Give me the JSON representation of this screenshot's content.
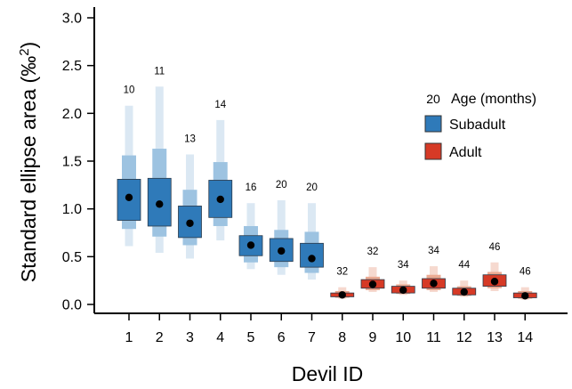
{
  "chart_data": {
    "type": "boxplot-intervals",
    "xlabel": "Devil ID",
    "ylabel_main": "Standard ellipse area (",
    "ylabel_unit": "‰",
    "ylabel_sup": "2",
    "ylabel_close": ")",
    "ylim": [
      0,
      3.0
    ],
    "yticks": [
      "0.0",
      "0.5",
      "1.0",
      "1.5",
      "2.0",
      "2.5",
      "3.0"
    ],
    "categories": [
      "1",
      "2",
      "3",
      "4",
      "5",
      "6",
      "7",
      "8",
      "9",
      "10",
      "11",
      "12",
      "13",
      "14"
    ],
    "legend": {
      "age_num": "20",
      "age_text": "Age (months)",
      "subadult": "Subadult",
      "adult": "Adult"
    },
    "colors": {
      "subadult": [
        "#dbe8f3",
        "#9dc3e1",
        "#2f7ab9"
      ],
      "adult": [
        "#f6d9cf",
        "#ecaa92",
        "#d63a26"
      ],
      "point": "#000000"
    },
    "series": [
      {
        "id": "1",
        "group": "subadult",
        "age": "10",
        "point": 1.12,
        "i95": [
          0.61,
          2.08
        ],
        "i75": [
          0.79,
          1.56
        ],
        "i50": [
          0.88,
          1.31
        ]
      },
      {
        "id": "2",
        "group": "subadult",
        "age": "11",
        "point": 1.05,
        "i95": [
          0.54,
          2.28
        ],
        "i75": [
          0.71,
          1.63
        ],
        "i50": [
          0.82,
          1.32
        ]
      },
      {
        "id": "3",
        "group": "subadult",
        "age": "13",
        "point": 0.85,
        "i95": [
          0.48,
          1.57
        ],
        "i75": [
          0.62,
          1.2
        ],
        "i50": [
          0.7,
          1.03
        ]
      },
      {
        "id": "4",
        "group": "subadult",
        "age": "14",
        "point": 1.1,
        "i95": [
          0.67,
          1.93
        ],
        "i75": [
          0.82,
          1.49
        ],
        "i50": [
          0.91,
          1.3
        ]
      },
      {
        "id": "5",
        "group": "subadult",
        "age": "16",
        "point": 0.62,
        "i95": [
          0.37,
          1.06
        ],
        "i75": [
          0.44,
          0.82
        ],
        "i50": [
          0.51,
          0.72
        ]
      },
      {
        "id": "6",
        "group": "subadult",
        "age": "20",
        "point": 0.56,
        "i95": [
          0.31,
          1.09
        ],
        "i75": [
          0.39,
          0.78
        ],
        "i50": [
          0.45,
          0.69
        ]
      },
      {
        "id": "7",
        "group": "subadult",
        "age": "20",
        "point": 0.48,
        "i95": [
          0.26,
          1.06
        ],
        "i75": [
          0.33,
          0.76
        ],
        "i50": [
          0.39,
          0.64
        ]
      },
      {
        "id": "8",
        "group": "adult",
        "age": "32",
        "point": 0.1,
        "i95": [
          0.06,
          0.18
        ],
        "i75": [
          0.07,
          0.14
        ],
        "i50": [
          0.08,
          0.12
        ]
      },
      {
        "id": "9",
        "group": "adult",
        "age": "32",
        "point": 0.21,
        "i95": [
          0.13,
          0.39
        ],
        "i75": [
          0.15,
          0.29
        ],
        "i50": [
          0.17,
          0.26
        ]
      },
      {
        "id": "10",
        "group": "adult",
        "age": "34",
        "point": 0.15,
        "i95": [
          0.1,
          0.25
        ],
        "i75": [
          0.11,
          0.21
        ],
        "i50": [
          0.12,
          0.19
        ]
      },
      {
        "id": "11",
        "group": "adult",
        "age": "34",
        "point": 0.22,
        "i95": [
          0.13,
          0.4
        ],
        "i75": [
          0.15,
          0.31
        ],
        "i50": [
          0.17,
          0.27
        ]
      },
      {
        "id": "12",
        "group": "adult",
        "age": "44",
        "point": 0.13,
        "i95": [
          0.08,
          0.25
        ],
        "i75": [
          0.09,
          0.19
        ],
        "i50": [
          0.1,
          0.17
        ]
      },
      {
        "id": "13",
        "group": "adult",
        "age": "46",
        "point": 0.24,
        "i95": [
          0.14,
          0.44
        ],
        "i75": [
          0.17,
          0.34
        ],
        "i50": [
          0.19,
          0.31
        ]
      },
      {
        "id": "14",
        "group": "adult",
        "age": "46",
        "point": 0.09,
        "i95": [
          0.05,
          0.18
        ],
        "i75": [
          0.06,
          0.14
        ],
        "i50": [
          0.07,
          0.12
        ]
      }
    ]
  }
}
